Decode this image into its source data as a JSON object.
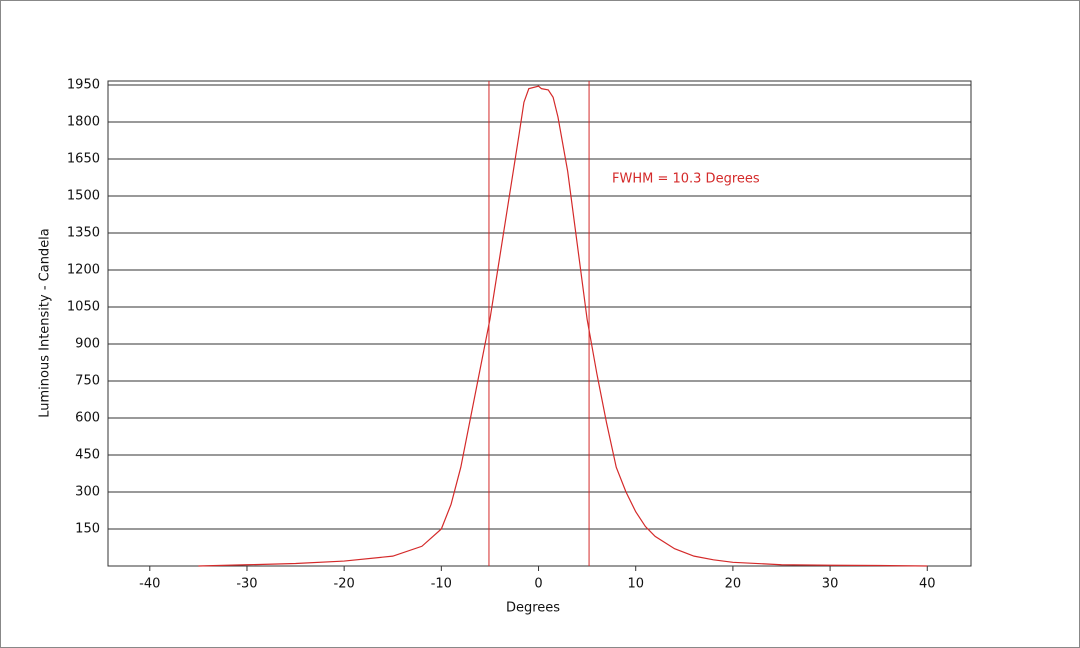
{
  "chart_data": {
    "type": "line",
    "x_label": "Degrees",
    "y_label": "Luminous Intensity - Candela",
    "annotation": "FWHM = 10.3 Degrees",
    "fwhm_lines": [
      -5.1,
      5.2
    ],
    "xlim": [
      -44.3,
      44.5
    ],
    "xticks": [
      -40,
      -30,
      -20,
      -10,
      0,
      10,
      20,
      30,
      40
    ],
    "ylim": [
      0,
      1966
    ],
    "yticks": [
      150,
      300,
      450,
      600,
      750,
      900,
      1050,
      1200,
      1350,
      1500,
      1650,
      1800,
      1950
    ],
    "grid": true,
    "series": [
      {
        "color": "#d42a2a",
        "x": [
          -35,
          -30,
          -25,
          -20,
          -15,
          -12,
          -10,
          -9,
          -8,
          -7,
          -6,
          -5,
          -4,
          -3,
          -2,
          -1.5,
          -1,
          0,
          0.3,
          1,
          1.5,
          2,
          3,
          4,
          5,
          6,
          7,
          8,
          9,
          10,
          11,
          12,
          14,
          16,
          18,
          20,
          25,
          30,
          35,
          40
        ],
        "values": [
          0,
          5,
          10,
          20,
          40,
          80,
          150,
          250,
          400,
          600,
          800,
          1000,
          1250,
          1500,
          1750,
          1880,
          1935,
          1945,
          1935,
          1930,
          1900,
          1820,
          1600,
          1300,
          1000,
          780,
          580,
          400,
          300,
          220,
          160,
          120,
          70,
          40,
          25,
          15,
          5,
          3,
          2,
          0
        ]
      }
    ]
  }
}
